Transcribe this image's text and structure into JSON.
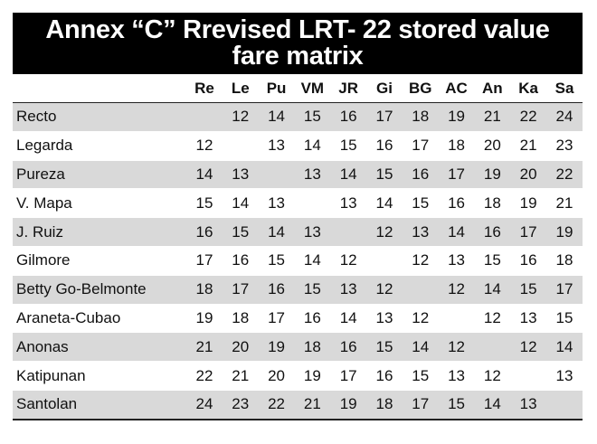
{
  "title": {
    "line1": "Annex “C” Rrevised LRT- 22 stored value",
    "line2": "fare matrix"
  },
  "columns": [
    "Re",
    "Le",
    "Pu",
    "VM",
    "JR",
    "Gi",
    "BG",
    "AC",
    "An",
    "Ka",
    "Sa"
  ],
  "rows": [
    {
      "station": "Recto",
      "fares": [
        "",
        "12",
        "14",
        "15",
        "16",
        "17",
        "18",
        "19",
        "21",
        "22",
        "24"
      ]
    },
    {
      "station": "Legarda",
      "fares": [
        "12",
        "",
        "13",
        "14",
        "15",
        "16",
        "17",
        "18",
        "20",
        "21",
        "23"
      ]
    },
    {
      "station": "Pureza",
      "fares": [
        "14",
        "13",
        "",
        "13",
        "14",
        "15",
        "16",
        "17",
        "19",
        "20",
        "22"
      ]
    },
    {
      "station": "V. Mapa",
      "fares": [
        "15",
        "14",
        "13",
        "",
        "13",
        "14",
        "15",
        "16",
        "18",
        "19",
        "21"
      ]
    },
    {
      "station": "J. Ruiz",
      "fares": [
        "16",
        "15",
        "14",
        "13",
        "",
        "12",
        "13",
        "14",
        "16",
        "17",
        "19"
      ]
    },
    {
      "station": "Gilmore",
      "fares": [
        "17",
        "16",
        "15",
        "14",
        "12",
        "",
        "12",
        "13",
        "15",
        "16",
        "18"
      ]
    },
    {
      "station": "Betty Go-Belmonte",
      "fares": [
        "18",
        "17",
        "16",
        "15",
        "13",
        "12",
        "",
        "12",
        "14",
        "15",
        "17"
      ]
    },
    {
      "station": "Araneta-Cubao",
      "fares": [
        "19",
        "18",
        "17",
        "16",
        "14",
        "13",
        "12",
        "",
        "12",
        "13",
        "15"
      ]
    },
    {
      "station": "Anonas",
      "fares": [
        "21",
        "20",
        "19",
        "18",
        "16",
        "15",
        "14",
        "12",
        "",
        "12",
        "14"
      ]
    },
    {
      "station": "Katipunan",
      "fares": [
        "22",
        "21",
        "20",
        "19",
        "17",
        "16",
        "15",
        "13",
        "12",
        "",
        "13"
      ]
    },
    {
      "station": "Santolan",
      "fares": [
        "24",
        "23",
        "22",
        "21",
        "19",
        "18",
        "17",
        "15",
        "14",
        "13",
        ""
      ]
    }
  ]
}
